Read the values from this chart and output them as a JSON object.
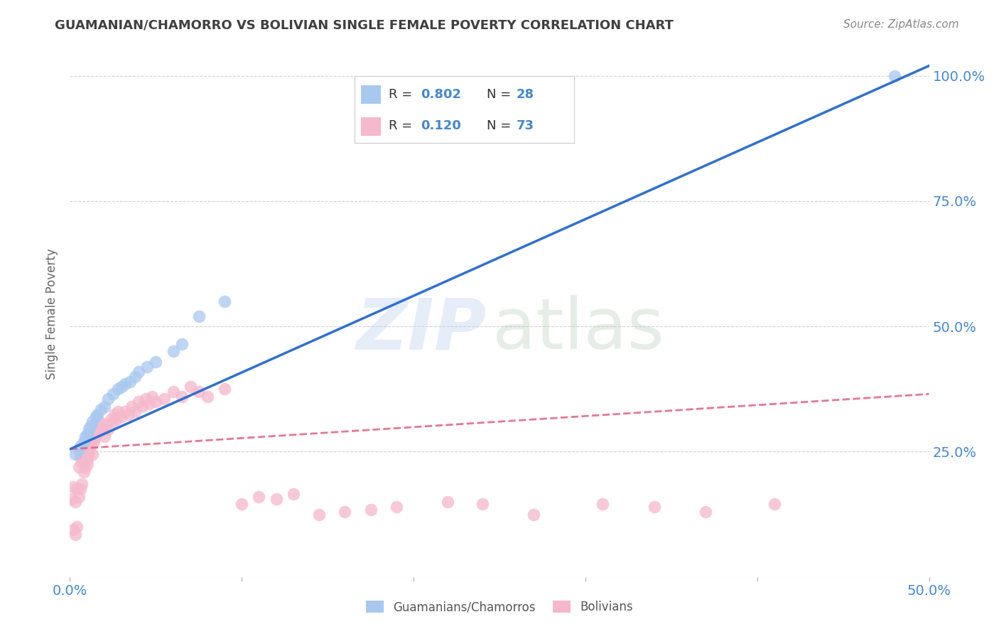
{
  "title": "GUAMANIAN/CHAMORRO VS BOLIVIAN SINGLE FEMALE POVERTY CORRELATION CHART",
  "source": "Source: ZipAtlas.com",
  "ylabel": "Single Female Poverty",
  "xlim": [
    0.0,
    0.5
  ],
  "ylim": [
    0.0,
    1.05
  ],
  "xtick_vals": [
    0.0,
    0.1,
    0.2,
    0.3,
    0.4,
    0.5
  ],
  "xtick_labels": [
    "0.0%",
    "",
    "",
    "",
    "",
    "50.0%"
  ],
  "ytick_vals": [
    0.0,
    0.25,
    0.5,
    0.75,
    1.0
  ],
  "ytick_labels_right": [
    "",
    "25.0%",
    "50.0%",
    "75.0%",
    "100.0%"
  ],
  "guamanian_color": "#a8c8f0",
  "bolivian_color": "#f5b8cc",
  "guamanian_line_color": "#3070d0",
  "bolivian_line_color": "#e06080",
  "background_color": "#ffffff",
  "grid_color": "#cccccc",
  "title_color": "#404040",
  "axis_color": "#4488cc",
  "legend_label1": "Guamanians/Chamorros",
  "legend_label2": "Bolivians",
  "guamanian_x": [
    0.003,
    0.005,
    0.006,
    0.008,
    0.009,
    0.01,
    0.011,
    0.012,
    0.013,
    0.015,
    0.016,
    0.018,
    0.02,
    0.022,
    0.025,
    0.028,
    0.03,
    0.032,
    0.035,
    0.038,
    0.04,
    0.045,
    0.05,
    0.06,
    0.065,
    0.075,
    0.09,
    0.48
  ],
  "guamanian_y": [
    0.245,
    0.255,
    0.26,
    0.27,
    0.28,
    0.285,
    0.295,
    0.3,
    0.31,
    0.32,
    0.325,
    0.335,
    0.34,
    0.355,
    0.365,
    0.375,
    0.38,
    0.385,
    0.39,
    0.4,
    0.41,
    0.42,
    0.43,
    0.45,
    0.465,
    0.52,
    0.55,
    1.0
  ],
  "bolivian_x": [
    0.001,
    0.002,
    0.002,
    0.003,
    0.003,
    0.004,
    0.004,
    0.005,
    0.005,
    0.006,
    0.006,
    0.007,
    0.007,
    0.008,
    0.008,
    0.009,
    0.009,
    0.01,
    0.01,
    0.01,
    0.011,
    0.012,
    0.012,
    0.013,
    0.013,
    0.014,
    0.015,
    0.015,
    0.016,
    0.017,
    0.018,
    0.019,
    0.02,
    0.021,
    0.022,
    0.024,
    0.025,
    0.026,
    0.027,
    0.028,
    0.03,
    0.032,
    0.034,
    0.036,
    0.038,
    0.04,
    0.042,
    0.044,
    0.046,
    0.048,
    0.05,
    0.055,
    0.06,
    0.065,
    0.07,
    0.075,
    0.08,
    0.09,
    0.1,
    0.11,
    0.12,
    0.13,
    0.145,
    0.16,
    0.175,
    0.19,
    0.22,
    0.24,
    0.27,
    0.31,
    0.34,
    0.37,
    0.41
  ],
  "bolivian_y": [
    0.155,
    0.095,
    0.18,
    0.085,
    0.15,
    0.1,
    0.175,
    0.16,
    0.22,
    0.175,
    0.24,
    0.185,
    0.23,
    0.21,
    0.24,
    0.22,
    0.245,
    0.225,
    0.235,
    0.25,
    0.245,
    0.26,
    0.27,
    0.245,
    0.265,
    0.27,
    0.28,
    0.3,
    0.29,
    0.31,
    0.29,
    0.295,
    0.28,
    0.305,
    0.295,
    0.315,
    0.31,
    0.325,
    0.315,
    0.33,
    0.32,
    0.33,
    0.325,
    0.34,
    0.33,
    0.35,
    0.34,
    0.355,
    0.345,
    0.36,
    0.35,
    0.355,
    0.37,
    0.36,
    0.38,
    0.37,
    0.36,
    0.375,
    0.145,
    0.16,
    0.155,
    0.165,
    0.125,
    0.13,
    0.135,
    0.14,
    0.15,
    0.145,
    0.125,
    0.145,
    0.14,
    0.13,
    0.145
  ],
  "guam_line_x0": 0.0,
  "guam_line_y0": 0.255,
  "guam_line_x1": 0.5,
  "guam_line_y1": 1.02,
  "boliv_line_x0": 0.0,
  "boliv_line_y0": 0.255,
  "boliv_line_x1": 0.5,
  "boliv_line_y1": 0.365
}
